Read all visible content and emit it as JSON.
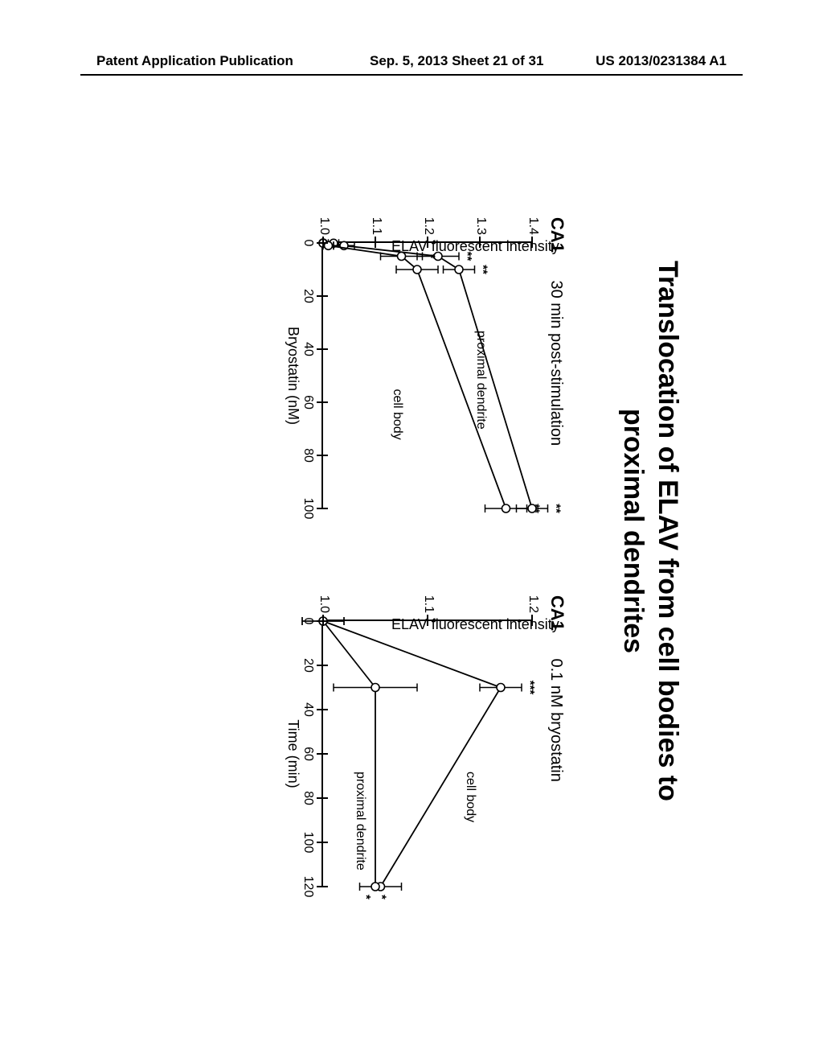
{
  "header": {
    "left": "Patent Application Publication",
    "center": "Sep. 5, 2013  Sheet 21 of 31",
    "right": "US 2013/0231384 A1"
  },
  "figure": {
    "title_l1": "Translocation of ELAV from cell bodies to",
    "title_l2": "proximal dendrites",
    "ylabel": "ELAV fluorescent intensity",
    "left": {
      "area_label": "CA1",
      "cond_label": "30 min post-stimulation",
      "xlabel": "Bryostatin (nM)",
      "xlim": [
        0,
        100
      ],
      "ylim": [
        1.0,
        1.4
      ],
      "xticks": [
        0,
        20,
        40,
        60,
        80,
        100
      ],
      "yticks": [
        1.0,
        1.1,
        1.2,
        1.3,
        1.4
      ],
      "line_color": "#000000",
      "series": {
        "proximal_dendrite": {
          "label": "proximal dendrite",
          "label_pos": {
            "x": 33,
            "y_data": 1.3
          },
          "points": [
            {
              "x": 0,
              "y": 1.0,
              "err": 0.0
            },
            {
              "x": 0.1,
              "y": 1.02,
              "err": 0.01
            },
            {
              "x": 1,
              "y": 1.04,
              "err": 0.02
            },
            {
              "x": 5,
              "y": 1.22,
              "err": 0.04,
              "sig": "**"
            },
            {
              "x": 10,
              "y": 1.26,
              "err": 0.03,
              "sig": "**"
            },
            {
              "x": 100,
              "y": 1.4,
              "err": 0.03,
              "sig": "**"
            }
          ]
        },
        "cell_body": {
          "label": "cell body",
          "label_pos": {
            "x": 55,
            "y_data": 1.14
          },
          "points": [
            {
              "x": 0,
              "y": 1.0,
              "err": 0.0
            },
            {
              "x": 0.1,
              "y": 1.0,
              "err": 0.0
            },
            {
              "x": 1,
              "y": 1.01,
              "err": 0.01
            },
            {
              "x": 5,
              "y": 1.15,
              "err": 0.04,
              "sig": "*"
            },
            {
              "x": 10,
              "y": 1.18,
              "err": 0.04
            },
            {
              "x": 100,
              "y": 1.35,
              "err": 0.04,
              "sig": "**"
            }
          ]
        }
      }
    },
    "right": {
      "area_label": "CA1",
      "cond_label": "0.1 nM bryostatin",
      "xlabel": "Time (min)",
      "xlim": [
        0,
        120
      ],
      "ylim": [
        1.0,
        1.2
      ],
      "xticks": [
        0,
        20,
        40,
        60,
        80,
        100,
        120
      ],
      "yticks": [
        1.0,
        1.1,
        1.2
      ],
      "line_color": "#000000",
      "series": {
        "cell_body": {
          "label": "cell body",
          "label_pos": {
            "x": 68,
            "y_data": 1.14
          },
          "points": [
            {
              "x": 0,
              "y": 1.0,
              "err": 0.02
            },
            {
              "x": 30,
              "y": 1.17,
              "err": 0.02,
              "sig": "***"
            },
            {
              "x": 120,
              "y": 1.055,
              "err": 0.02,
              "sig": "*",
              "sig_side": "right"
            }
          ]
        },
        "proximal_dendrite": {
          "label": "proximal dendrite",
          "label_pos": {
            "x": 68,
            "y_data": 1.035
          },
          "points": [
            {
              "x": 0,
              "y": 1.0,
              "err": 0.02
            },
            {
              "x": 30,
              "y": 1.05,
              "err": 0.04
            },
            {
              "x": 120,
              "y": 1.05,
              "err": 0.0,
              "sig": "*",
              "sig_side": "right-low"
            }
          ]
        }
      }
    }
  }
}
